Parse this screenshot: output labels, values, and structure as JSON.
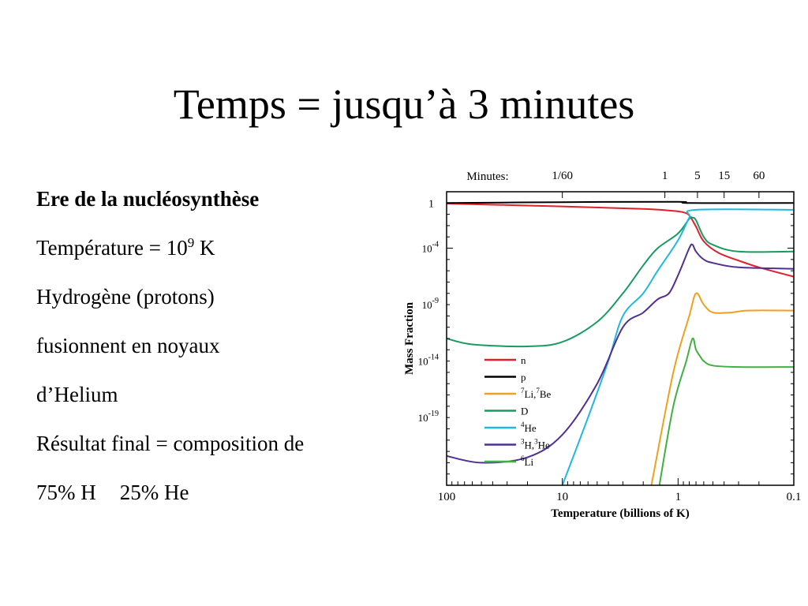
{
  "slide": {
    "title": "Temps = jusqu’à 3 minutes",
    "heading": "Ere de la nucléosynthèse",
    "temperature_prefix": "Température = 10",
    "temperature_exponent": "9",
    "temperature_unit": " K",
    "line3": "Hydrogène (protons)",
    "line4": "fusionnent en noyaux",
    "line5": "d’Helium",
    "line6": "Résultat final = composition de",
    "result_h": "75% H",
    "result_he": "25% He"
  },
  "chart_data": {
    "type": "line",
    "title": "",
    "xlabel": "Temperature (billions of K)",
    "ylabel": "Mass Fraction",
    "x_scale": "log",
    "x_direction": "decreasing",
    "xlim": [
      100,
      0.1
    ],
    "y_scale": "log",
    "ylim": [
      1e-25,
      10
    ],
    "x_ticks": [
      100,
      10,
      1,
      0.1
    ],
    "x_tick_labels": [
      "100",
      "10",
      "1",
      "0.1"
    ],
    "y_ticks": [
      1,
      0.0001,
      1e-09,
      1e-14,
      1e-19
    ],
    "y_tick_labels": [
      {
        "base": "1",
        "exp": ""
      },
      {
        "base": "10",
        "exp": "-4"
      },
      {
        "base": "10",
        "exp": "-9"
      },
      {
        "base": "10",
        "exp": "-14"
      },
      {
        "base": "10",
        "exp": "-19"
      }
    ],
    "top_axis": {
      "label": "Minutes:",
      "ticks": [
        {
          "label": "1/60",
          "temperature": 10
        },
        {
          "label": "1",
          "temperature": 1.3
        },
        {
          "label": "5",
          "temperature": 0.68
        },
        {
          "label": "15",
          "temperature": 0.4
        },
        {
          "label": "60",
          "temperature": 0.2
        }
      ]
    },
    "legend_position": "center-left",
    "grid": false,
    "series": [
      {
        "name": "n",
        "color": "#e0202c",
        "x": [
          100,
          10,
          2,
          1.1,
          0.9,
          0.8,
          0.7,
          0.6,
          0.45,
          0.3,
          0.2,
          0.1
        ],
        "y": [
          0.9,
          0.5,
          0.3,
          0.2,
          0.15,
          0.08,
          0.008,
          0.0004,
          4e-05,
          8e-06,
          2e-06,
          3e-07
        ]
      },
      {
        "name": "p",
        "color": "#000000",
        "x": [
          100,
          10,
          1,
          0.8,
          0.1
        ],
        "y": [
          1,
          1.2,
          1.3,
          1,
          1
        ]
      },
      {
        "name": "7Li,7Be",
        "color": "#f0a020",
        "x": [
          1.7,
          1.1,
          0.8,
          0.7,
          0.6,
          0.5,
          0.35,
          0.25,
          0.1
        ],
        "y": [
          1e-25,
          1e-15,
          1e-10,
          1e-08,
          1e-09,
          2e-10,
          2e-10,
          3e-10,
          3e-10
        ]
      },
      {
        "name": "D",
        "color": "#1a9a60",
        "x": [
          100,
          60,
          20,
          10,
          5,
          3,
          2,
          1.5,
          1,
          0.8,
          0.75,
          0.7,
          0.6,
          0.5,
          0.3,
          0.1
        ],
        "y": [
          1e-12,
          3e-13,
          2e-13,
          5e-13,
          3e-11,
          1e-08,
          3e-06,
          0.0001,
          0.002,
          0.04,
          0.05,
          0.03,
          0.001,
          0.0002,
          5e-05,
          5e-05
        ]
      },
      {
        "name": "4He",
        "color": "#20b8e0",
        "x": [
          10,
          6,
          4,
          3,
          2,
          1.5,
          1,
          0.8,
          0.7,
          0.1
        ],
        "y": [
          1e-25,
          1e-19,
          1e-14,
          1e-10,
          1e-08,
          1e-06,
          0.0005,
          0.05,
          0.25,
          0.25
        ]
      },
      {
        "name": "3H,3He",
        "color": "#503090",
        "x": [
          100,
          50,
          20,
          10,
          5,
          3,
          2,
          1.5,
          1.2,
          1,
          0.8,
          0.75,
          0.7,
          0.6,
          0.5,
          0.3,
          0.1
        ],
        "y": [
          4e-23,
          1e-23,
          3e-23,
          3e-21,
          1e-16,
          1e-11,
          2e-10,
          3e-09,
          1e-08,
          4e-07,
          0.0001,
          0.0002,
          5e-05,
          1e-05,
          5e-06,
          2e-06,
          1.5e-06
        ]
      },
      {
        "name": "6Li",
        "color": "#40b040",
        "x": [
          1.45,
          1.1,
          0.85,
          0.75,
          0.7,
          0.65,
          0.6,
          0.5,
          0.3,
          0.1
        ],
        "y": [
          1e-25,
          1e-18,
          1e-14,
          1e-12,
          1e-13,
          3e-14,
          1e-14,
          4e-15,
          3e-15,
          3e-15
        ]
      }
    ]
  }
}
